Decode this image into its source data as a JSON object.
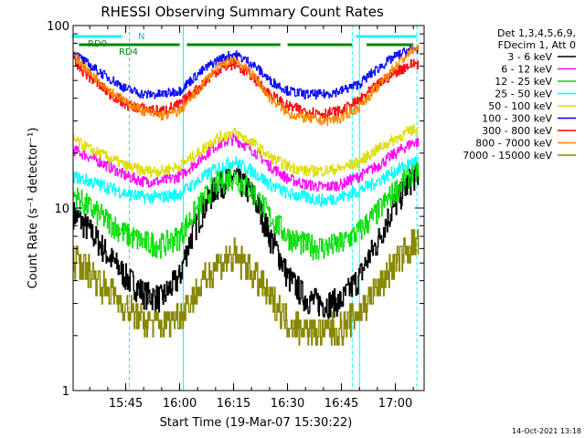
{
  "chart_data": {
    "type": "line",
    "title": "RHESSI Observing Summary Count Rates",
    "xlabel": "Start Time (19-Mar-07 15:30:22)",
    "ylabel": "Count Rate (s⁻¹ detector⁻¹)",
    "y_scale": "log",
    "ylim": [
      1,
      100
    ],
    "xlim": [
      "15:30:22",
      "17:08:00"
    ],
    "x_ticks": [
      "15:45",
      "16:00",
      "16:15",
      "16:30",
      "16:45",
      "17:00"
    ],
    "y_ticks": [
      "1",
      "10",
      "100"
    ],
    "grid": false,
    "legend_position": "top-right",
    "legend_header": [
      "Det 1,3,4,5,6,9,",
      "FDecim 1, Att 0"
    ],
    "x": [
      "15:30",
      "15:35",
      "15:40",
      "15:45",
      "15:50",
      "15:55",
      "16:00",
      "16:05",
      "16:10",
      "16:15",
      "16:20",
      "16:25",
      "16:30",
      "16:35",
      "16:40",
      "16:45",
      "16:50",
      "16:55",
      "17:00",
      "17:05"
    ],
    "series": [
      {
        "name": "3 - 6 keV",
        "color": "#000000",
        "values": [
          9.5,
          7.5,
          5.5,
          4.2,
          3.4,
          3.2,
          4.2,
          8.5,
          13,
          15,
          12,
          7,
          4.2,
          3.2,
          3.0,
          3.1,
          4.2,
          6.5,
          10.5,
          15
        ]
      },
      {
        "name": "6 - 12 keV",
        "color": "#ff00ff",
        "values": [
          21,
          19,
          17,
          15,
          14,
          14,
          15,
          18,
          22,
          24,
          21,
          17,
          14.5,
          13.5,
          13,
          13.5,
          15,
          17,
          20,
          23
        ]
      },
      {
        "name": "12 - 25 keV",
        "color": "#00dd00",
        "values": [
          12,
          10,
          8.5,
          7.2,
          6.5,
          6.3,
          7,
          10,
          13.5,
          15,
          12.5,
          9,
          7,
          6.3,
          6.1,
          6.4,
          7.5,
          9.5,
          12.5,
          16
        ]
      },
      {
        "name": "25 - 50 keV",
        "color": "#00ffff",
        "values": [
          15,
          14,
          13,
          12,
          11.5,
          11.5,
          12,
          14,
          16.5,
          18,
          16,
          13.5,
          12,
          11.5,
          11,
          11.5,
          12.5,
          14,
          16,
          18
        ]
      },
      {
        "name": "50 - 100 keV",
        "color": "#dddd00",
        "values": [
          24,
          21,
          19,
          17,
          16,
          16,
          17,
          20,
          24,
          26,
          23,
          19,
          17,
          16,
          16,
          16.5,
          18,
          21,
          24,
          27
        ]
      },
      {
        "name": "100 - 300 keV",
        "color": "#0000ff",
        "values": [
          72,
          60,
          52,
          45,
          42,
          42,
          44,
          54,
          64,
          70,
          62,
          50,
          44,
          42,
          42,
          44,
          48,
          58,
          68,
          75
        ]
      },
      {
        "name": "300 - 800 keV",
        "color": "#ff0000",
        "values": [
          64,
          52,
          43,
          37,
          35,
          34,
          37,
          45,
          56,
          62,
          53,
          42,
          36,
          34,
          33,
          34,
          39,
          47,
          56,
          62
        ]
      },
      {
        "name": "800 - 7000 keV",
        "color": "#ff8800",
        "values": [
          70,
          55,
          45,
          38,
          34,
          32,
          34,
          44,
          58,
          66,
          54,
          40,
          33,
          31,
          30,
          31,
          36,
          46,
          60,
          74
        ]
      },
      {
        "name": "7000 - 15000 keV",
        "color": "#888800",
        "values": [
          5.5,
          4.5,
          3.6,
          2.8,
          2.4,
          2.3,
          2.6,
          3.5,
          4.8,
          5.5,
          4.5,
          3.2,
          2.4,
          2.2,
          2.1,
          2.2,
          2.7,
          3.6,
          5,
          6.5
        ]
      }
    ],
    "annotations": {
      "bar_labels": [
        "RD0",
        "RD4",
        "N"
      ],
      "green_segments": [
        [
          "15:32",
          "16:00"
        ],
        [
          "16:02",
          "16:28"
        ],
        [
          "16:30",
          "16:48"
        ],
        [
          "16:52",
          "17:05"
        ]
      ],
      "cyan_segments": [
        [
          "15:30",
          "15:44"
        ],
        [
          "16:49",
          "17:06"
        ]
      ],
      "vertical_markers": [
        "15:30:22",
        "15:46",
        "16:01",
        "16:48",
        "16:50",
        "17:06"
      ]
    }
  },
  "footer": {
    "timestamp": "14-Oct-2021 13:18"
  }
}
